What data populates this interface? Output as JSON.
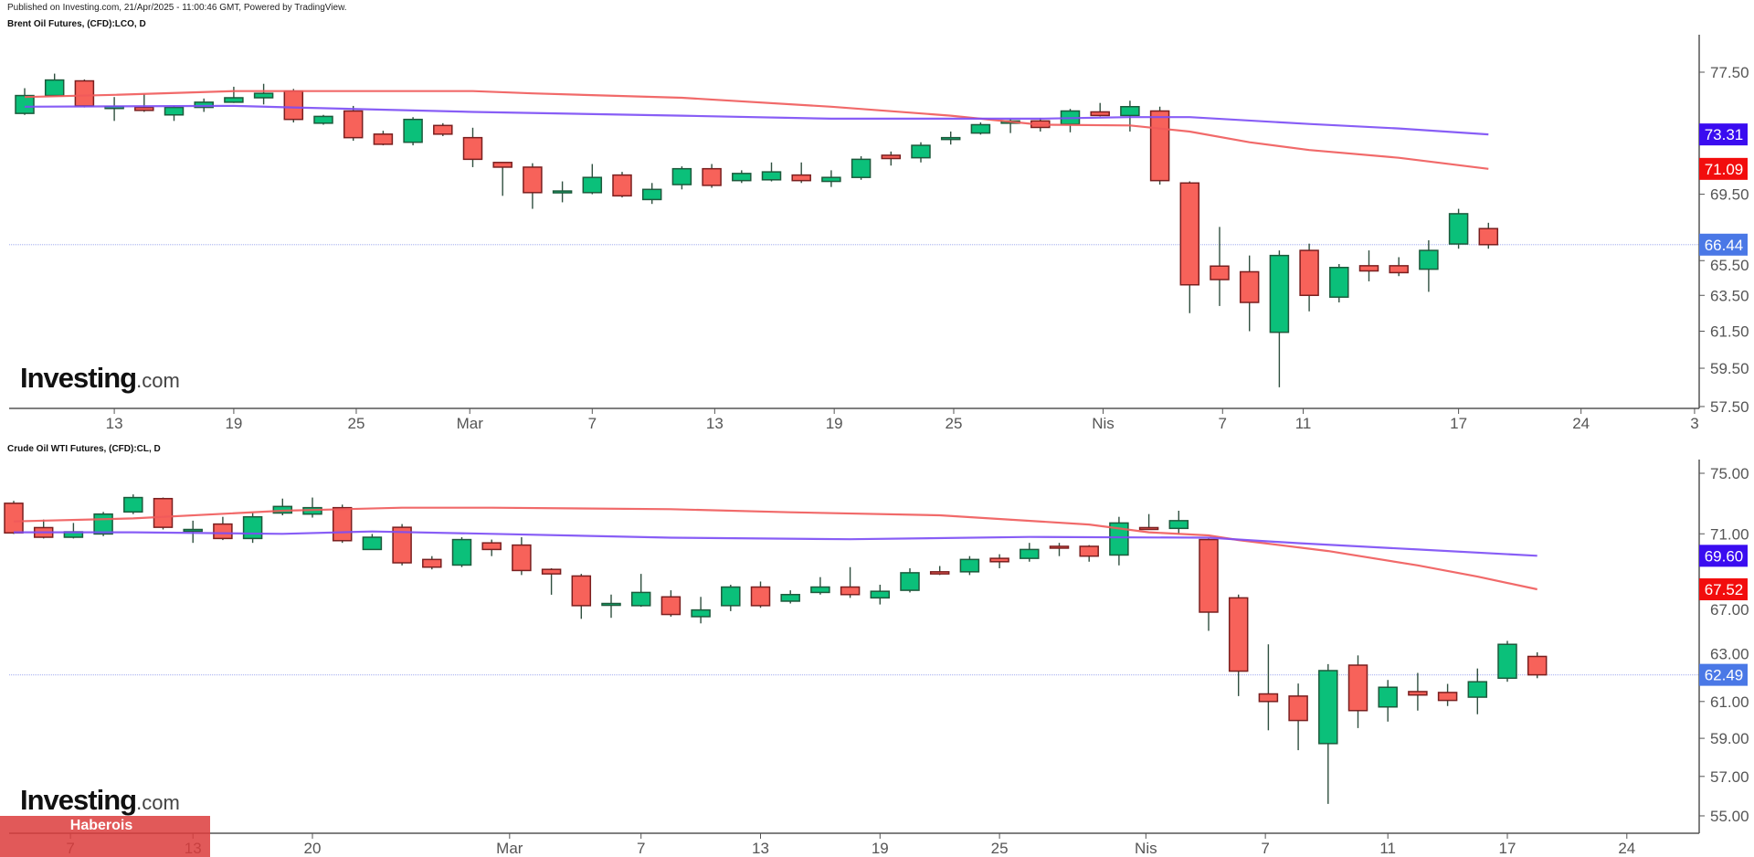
{
  "header": {
    "published": "Published on Investing.com, 21/Apr/2025 - 11:00:46 GMT, Powered by TradingView."
  },
  "branding": {
    "logo_main": "Investing",
    "logo_suffix": ".com",
    "banner": "Haberois"
  },
  "colors": {
    "up": "#0bc07a",
    "up_border": "#1d5a3c",
    "down": "#f7625a",
    "down_border": "#7a1f1f",
    "wick": "#2f4f3f",
    "ma_red": "#f05a5a",
    "ma_purple": "#7b4cf5",
    "badge_purple": "#3a0cf0",
    "badge_red": "#f20d0d",
    "badge_blue": "#4a78e6",
    "last_line": "#b4bcf2"
  },
  "chart_data": [
    {
      "type": "candlestick",
      "title": "Brent Oil Futures, (CFD):LCO, D",
      "scale": "log",
      "ylim": [
        57.5,
        78.5
      ],
      "y_ticks": [
        "77.50",
        "69.50",
        "65.50",
        "63.50",
        "61.50",
        "59.50",
        "57.50"
      ],
      "x_ticks": [
        {
          "label": "13",
          "index": 3
        },
        {
          "label": "19",
          "index": 7
        },
        {
          "label": "25",
          "index": 11.1
        },
        {
          "label": "Mar",
          "index": 14.9
        },
        {
          "label": "7",
          "index": 19
        },
        {
          "label": "13",
          "index": 23.1
        },
        {
          "label": "19",
          "index": 27.1
        },
        {
          "label": "25",
          "index": 31.1
        },
        {
          "label": "Nis",
          "index": 36.1
        },
        {
          "label": "7",
          "index": 40.1
        },
        {
          "label": "11",
          "index": 42.8
        },
        {
          "label": "17",
          "index": 48
        },
        {
          "label": "24",
          "index": 52.1
        },
        {
          "label": "3",
          "index": 55.9
        }
      ],
      "ohlc": [
        [
          74.7,
          76.4,
          74.6,
          75.9
        ],
        [
          75.9,
          77.4,
          75.9,
          76.96
        ],
        [
          76.9,
          77.0,
          75.1,
          75.2
        ],
        [
          75.15,
          75.8,
          74.2,
          75.15
        ],
        [
          75.1,
          76.0,
          74.8,
          74.9
        ],
        [
          74.6,
          75.2,
          74.2,
          75.1
        ],
        [
          75.1,
          75.7,
          74.8,
          75.45
        ],
        [
          75.45,
          76.5,
          75.4,
          75.75
        ],
        [
          75.75,
          76.7,
          75.3,
          76.05
        ],
        [
          76.2,
          76.35,
          74.1,
          74.3
        ],
        [
          74.05,
          74.6,
          73.95,
          74.5
        ],
        [
          74.86,
          75.2,
          72.9,
          73.1
        ],
        [
          73.33,
          73.55,
          72.6,
          72.67
        ],
        [
          72.8,
          74.45,
          72.6,
          74.3
        ],
        [
          73.9,
          74.05,
          73.2,
          73.33
        ],
        [
          73.1,
          73.75,
          71.2,
          71.7
        ],
        [
          71.5,
          71.5,
          69.4,
          71.2
        ],
        [
          71.2,
          71.45,
          68.6,
          69.6
        ],
        [
          69.7,
          70.3,
          69.0,
          69.7
        ],
        [
          69.6,
          71.4,
          69.5,
          70.55
        ],
        [
          70.7,
          70.9,
          69.3,
          69.4
        ],
        [
          69.17,
          70.2,
          68.9,
          69.8
        ],
        [
          70.1,
          71.25,
          69.8,
          71.1
        ],
        [
          71.1,
          71.4,
          69.9,
          70.05
        ],
        [
          70.35,
          71.0,
          70.2,
          70.8
        ],
        [
          70.4,
          71.5,
          70.3,
          70.9
        ],
        [
          70.7,
          71.5,
          70.2,
          70.35
        ],
        [
          70.3,
          71.0,
          69.95,
          70.55
        ],
        [
          70.55,
          71.9,
          70.4,
          71.7
        ],
        [
          71.96,
          72.2,
          71.3,
          71.75
        ],
        [
          71.8,
          72.8,
          71.5,
          72.6
        ],
        [
          73.1,
          73.5,
          72.65,
          73.1
        ],
        [
          73.4,
          74.1,
          73.3,
          73.95
        ],
        [
          74.05,
          74.35,
          73.4,
          74.2
        ],
        [
          74.2,
          74.4,
          73.5,
          73.77
        ],
        [
          73.98,
          75.0,
          73.45,
          74.86
        ],
        [
          74.8,
          75.4,
          74.5,
          74.56
        ],
        [
          74.56,
          75.55,
          73.5,
          75.15
        ],
        [
          74.86,
          75.15,
          70.1,
          70.35
        ],
        [
          70.2,
          70.3,
          62.5,
          64.1
        ],
        [
          65.18,
          67.5,
          62.9,
          64.4
        ],
        [
          64.85,
          65.8,
          61.5,
          63.1
        ],
        [
          61.44,
          66.1,
          58.5,
          65.8
        ],
        [
          66.1,
          66.5,
          62.6,
          63.5
        ],
        [
          63.4,
          65.3,
          63.1,
          65.1
        ],
        [
          65.2,
          66.1,
          64.3,
          64.9
        ],
        [
          65.2,
          65.7,
          64.6,
          64.8
        ],
        [
          65.0,
          66.7,
          63.7,
          66.1
        ],
        [
          66.48,
          68.6,
          66.2,
          68.3
        ],
        [
          67.4,
          67.75,
          66.2,
          66.44
        ]
      ],
      "ma": [
        {
          "name": "MA red",
          "color": "ma_red",
          "points": [
            [
              0,
              75.8
            ],
            [
              3,
              75.95
            ],
            [
              7,
              76.2
            ],
            [
              9,
              76.2
            ],
            [
              15,
              76.2
            ],
            [
              17,
              76.05
            ],
            [
              22,
              75.75
            ],
            [
              27,
              75.15
            ],
            [
              31,
              74.55
            ],
            [
              34,
              73.95
            ],
            [
              37,
              73.9
            ],
            [
              39,
              73.5
            ],
            [
              41,
              72.8
            ],
            [
              43,
              72.3
            ],
            [
              46,
              71.8
            ],
            [
              49,
              71.09
            ]
          ]
        },
        {
          "name": "MA purple",
          "color": "ma_purple",
          "points": [
            [
              0,
              75.15
            ],
            [
              7,
              75.2
            ],
            [
              9,
              75.1
            ],
            [
              15,
              74.8
            ],
            [
              22,
              74.55
            ],
            [
              27,
              74.35
            ],
            [
              34,
              74.35
            ],
            [
              37,
              74.45
            ],
            [
              39,
              74.45
            ],
            [
              43,
              74.0
            ],
            [
              46,
              73.7
            ],
            [
              49,
              73.31
            ]
          ]
        }
      ],
      "badges": [
        {
          "value": "73.31",
          "color": "badge_purple"
        },
        {
          "value": "71.09",
          "color": "badge_red"
        },
        {
          "value": "66.44",
          "color": "badge_blue"
        }
      ],
      "last_price": 66.44
    },
    {
      "type": "candlestick",
      "title": "Crude Oil WTI Futures, (CFD):CL, D",
      "scale": "log",
      "ylim": [
        54.3,
        76.0
      ],
      "y_ticks": [
        "75.00",
        "71.00",
        "67.00",
        "63.00",
        "61.00",
        "59.00",
        "57.00",
        "55.00"
      ],
      "x_ticks": [
        {
          "label": "7",
          "index": 1.9
        },
        {
          "label": "13",
          "index": 6
        },
        {
          "label": "20",
          "index": 10
        },
        {
          "label": "Mar",
          "index": 16.6
        },
        {
          "label": "7",
          "index": 21
        },
        {
          "label": "13",
          "index": 25
        },
        {
          "label": "19",
          "index": 29
        },
        {
          "label": "25",
          "index": 33
        },
        {
          "label": "Nis",
          "index": 37.9
        },
        {
          "label": "7",
          "index": 41.9
        },
        {
          "label": "11",
          "index": 46
        },
        {
          "label": "17",
          "index": 50
        },
        {
          "label": "24",
          "index": 54
        }
      ],
      "ohlc": [
        [
          72.99,
          73.15,
          70.99,
          71.06
        ],
        [
          71.4,
          71.92,
          70.7,
          70.78
        ],
        [
          70.78,
          71.7,
          70.7,
          71.13
        ],
        [
          70.99,
          72.42,
          70.85,
          72.28
        ],
        [
          72.42,
          73.58,
          72.28,
          73.37
        ],
        [
          73.3,
          73.37,
          71.28,
          71.42
        ],
        [
          71.28,
          71.85,
          70.42,
          71.28
        ],
        [
          71.63,
          72.1,
          70.6,
          70.7
        ],
        [
          70.7,
          72.35,
          70.42,
          72.1
        ],
        [
          72.35,
          73.3,
          72.2,
          72.78
        ],
        [
          72.28,
          73.37,
          72.05,
          72.7
        ],
        [
          72.7,
          72.9,
          70.42,
          70.56
        ],
        [
          70.0,
          70.99,
          70.0,
          70.78
        ],
        [
          71.42,
          71.63,
          69.0,
          69.16
        ],
        [
          69.37,
          69.58,
          68.75,
          68.89
        ],
        [
          69.02,
          70.78,
          68.89,
          70.63
        ],
        [
          70.42,
          70.63,
          69.58,
          70.0
        ],
        [
          70.28,
          70.78,
          68.4,
          68.68
        ],
        [
          68.75,
          68.82,
          67.19,
          68.47
        ],
        [
          68.34,
          68.47,
          65.74,
          66.53
        ],
        [
          66.66,
          67.2,
          65.8,
          66.66
        ],
        [
          66.53,
          68.47,
          66.46,
          67.33
        ],
        [
          67.06,
          67.46,
          65.87,
          66.0
        ],
        [
          65.87,
          67.06,
          65.47,
          66.27
        ],
        [
          66.53,
          67.8,
          66.2,
          67.66
        ],
        [
          67.66,
          68.0,
          66.4,
          66.53
        ],
        [
          66.8,
          67.46,
          66.66,
          67.2
        ],
        [
          67.33,
          68.27,
          67.2,
          67.66
        ],
        [
          67.66,
          68.89,
          67.0,
          67.2
        ],
        [
          67.0,
          67.8,
          66.6,
          67.4
        ],
        [
          67.46,
          68.82,
          67.33,
          68.54
        ],
        [
          68.6,
          68.96,
          68.4,
          68.47
        ],
        [
          68.6,
          69.58,
          68.4,
          69.37
        ],
        [
          69.44,
          69.7,
          68.82,
          69.23
        ],
        [
          69.44,
          70.42,
          69.23,
          70.0
        ],
        [
          70.2,
          70.42,
          69.58,
          70.13
        ],
        [
          70.2,
          70.28,
          69.23,
          69.58
        ],
        [
          69.65,
          72.1,
          69.0,
          71.7
        ],
        [
          71.4,
          72.28,
          71.28,
          71.3
        ],
        [
          71.35,
          72.5,
          70.99,
          71.85
        ],
        [
          70.63,
          70.7,
          65.03,
          66.14
        ],
        [
          67.0,
          67.2,
          61.3,
          62.7
        ],
        [
          61.42,
          64.24,
          59.43,
          61.0
        ],
        [
          61.3,
          62.0,
          58.37,
          59.96
        ],
        [
          58.72,
          63.1,
          55.6,
          62.73
        ],
        [
          63.04,
          63.6,
          59.55,
          60.5
        ],
        [
          60.7,
          62.2,
          59.9,
          61.79
        ],
        [
          61.55,
          62.6,
          60.5,
          61.36
        ],
        [
          61.5,
          61.98,
          60.75,
          61.06
        ],
        [
          61.24,
          62.85,
          60.3,
          62.1
        ],
        [
          62.3,
          64.44,
          62.1,
          64.24
        ],
        [
          63.54,
          63.78,
          62.3,
          62.49
        ]
      ],
      "ma": [
        {
          "name": "MA red",
          "color": "ma_red",
          "points": [
            [
              0,
              71.8
            ],
            [
              4,
              72.0
            ],
            [
              9,
              72.5
            ],
            [
              13,
              72.7
            ],
            [
              16,
              72.7
            ],
            [
              22,
              72.6
            ],
            [
              26,
              72.4
            ],
            [
              31,
              72.2
            ],
            [
              36,
              71.6
            ],
            [
              38,
              71.1
            ],
            [
              40,
              70.9
            ],
            [
              41,
              70.6
            ],
            [
              44,
              69.9
            ],
            [
              47,
              69.0
            ],
            [
              49,
              68.3
            ],
            [
              51,
              67.52
            ]
          ]
        },
        {
          "name": "MA purple",
          "color": "ma_purple",
          "points": [
            [
              0,
              71.1
            ],
            [
              4,
              71.1
            ],
            [
              9,
              71.0
            ],
            [
              12,
              71.15
            ],
            [
              16,
              71.0
            ],
            [
              22,
              70.75
            ],
            [
              28,
              70.65
            ],
            [
              34,
              70.8
            ],
            [
              40,
              70.75
            ],
            [
              43,
              70.4
            ],
            [
              47,
              70.0
            ],
            [
              51,
              69.6
            ]
          ]
        }
      ],
      "badges": [
        {
          "value": "69.60",
          "color": "badge_purple"
        },
        {
          "value": "67.52",
          "color": "badge_red"
        },
        {
          "value": "62.49",
          "color": "badge_blue"
        }
      ],
      "last_price": 62.49
    }
  ]
}
